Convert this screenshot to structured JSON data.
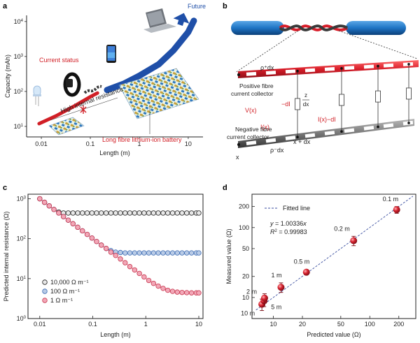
{
  "panels": {
    "a": {
      "label": "a",
      "future_label": "Future",
      "current_status_label": "Current status",
      "high_resistance_label": "High internal resistance",
      "battery_label": "Long fibre lithium-ion battery",
      "colors": {
        "current": "#d11f26",
        "future": "#1f4fa8"
      }
    },
    "b": {
      "label": "b",
      "rho_plus": "ρ⁺dx",
      "pos_collector": [
        "Positive fibre",
        "current collector"
      ],
      "neg_collector": [
        "Negative fibre",
        "current collector"
      ],
      "V": "V(x)",
      "minus_dI": "−dI",
      "z_num": "z",
      "z_den": "dx",
      "I": "I(x)",
      "I_minus": "I(x)−dI",
      "rho_minus": "ρ⁻dx",
      "x": "x",
      "xdx": "x + dx"
    },
    "c": {
      "label": "c"
    },
    "d": {
      "label": "d"
    }
  },
  "chart_data": [
    {
      "panel": "a",
      "type": "line",
      "xlabel": "Length (m)",
      "ylabel": "Capacity (mAh)",
      "x_scale": "log",
      "y_scale": "log",
      "xlim": [
        0.005,
        20
      ],
      "ylim": [
        5,
        15000
      ],
      "x_ticks": [
        {
          "v": 0.01,
          "t": "0.01"
        },
        {
          "v": 0.1,
          "t": "0.1"
        },
        {
          "v": 1,
          "t": "1"
        },
        {
          "v": 10,
          "t": "10"
        }
      ],
      "y_ticks": [
        {
          "v": 10,
          "t": "10",
          "e": "1"
        },
        {
          "v": 100,
          "t": "10",
          "e": "2"
        },
        {
          "v": 1000,
          "t": "10",
          "e": "3"
        },
        {
          "v": 10000,
          "t": "10",
          "e": "4"
        }
      ],
      "series": [
        {
          "x": [
            0.009,
            0.02,
            0.05,
            0.1,
            0.14
          ],
          "y": [
            12,
            20,
            40,
            70,
            90
          ]
        },
        {
          "x": [
            0.22,
            0.5,
            1.0,
            2.5,
            5.0,
            10.0,
            13.0
          ],
          "y": [
            110,
            170,
            280,
            600,
            1500,
            5000,
            10500
          ]
        }
      ]
    },
    {
      "panel": "c",
      "type": "scatter",
      "xlabel": "Length (m)",
      "ylabel": "Predicted internal resistance (Ω)",
      "x_scale": "log",
      "y_scale": "log",
      "xlim": [
        0.006,
        12
      ],
      "ylim": [
        1,
        1300
      ],
      "x_ticks": [
        {
          "v": 0.01,
          "t": "0.01"
        },
        {
          "v": 0.1,
          "t": "0.1"
        },
        {
          "v": 1,
          "t": "1"
        },
        {
          "v": 10,
          "t": "10"
        }
      ],
      "y_ticks": [
        {
          "v": 1,
          "t": "10",
          "e": "0"
        },
        {
          "v": 10,
          "t": "10",
          "e": "1"
        },
        {
          "v": 100,
          "t": "10",
          "e": "2"
        },
        {
          "v": 1000,
          "t": "10",
          "e": "3"
        }
      ],
      "x": [
        0.01,
        0.0123,
        0.0151,
        0.0185,
        0.0228,
        0.028,
        0.0344,
        0.0423,
        0.052,
        0.0638,
        0.0785,
        0.0965,
        0.118,
        0.145,
        0.179,
        0.22,
        0.27,
        0.332,
        0.408,
        0.501,
        0.616,
        0.757,
        0.93,
        1.14,
        1.4,
        1.72,
        2.12,
        2.6,
        3.2,
        3.93,
        4.83,
        5.93,
        7.29,
        8.96,
        10.0
      ],
      "series": [
        {
          "name": "10,000 Ω m⁻¹",
          "color": "#222222",
          "fill": "#e8e8e8",
          "values": [
            1000,
            815,
            663,
            540,
            465,
            440,
            440,
            440,
            440,
            440,
            440,
            440,
            440,
            440,
            440,
            440,
            440,
            440,
            440,
            440,
            440,
            440,
            440,
            440,
            440,
            440,
            440,
            440,
            440,
            440,
            440,
            440,
            440,
            440,
            440
          ]
        },
        {
          "name": "100 Ω m⁻¹",
          "color": "#3b6bb3",
          "fill": "#b9cbe6",
          "values": [
            1000,
            815,
            663,
            540,
            440,
            357,
            291,
            237,
            193,
            157,
            128,
            104,
            85,
            69,
            57,
            50,
            46,
            45,
            44,
            44,
            44,
            44,
            44,
            44,
            44,
            44,
            44,
            44,
            44,
            44,
            44,
            44,
            44,
            44,
            44
          ]
        },
        {
          "name": "1 Ω m⁻¹",
          "color": "#c8374f",
          "fill": "#f2a8b8",
          "values": [
            1000,
            815,
            663,
            540,
            440,
            357,
            291,
            237,
            193,
            157,
            128,
            104,
            85,
            69,
            57,
            46,
            38,
            31,
            25,
            20,
            16.5,
            13.5,
            11,
            9,
            7.6,
            6.5,
            5.7,
            5.1,
            4.8,
            4.6,
            4.5,
            4.45,
            4.4,
            4.4,
            4.4
          ]
        }
      ],
      "legend_position": "bottom-left"
    },
    {
      "panel": "d",
      "type": "scatter",
      "xlabel": "Predicted value (Ω)",
      "ylabel": "Measured value (Ω)",
      "x_scale": "log",
      "y_scale": "log",
      "xlim": [
        6,
        300
      ],
      "ylim": [
        5,
        300
      ],
      "x_ticks": [
        {
          "v": 10,
          "t": "10"
        },
        {
          "v": 20,
          "t": "20"
        },
        {
          "v": 50,
          "t": "50"
        },
        {
          "v": 100,
          "t": "100"
        },
        {
          "v": 200,
          "t": "200"
        }
      ],
      "y_ticks": [
        {
          "v": 10,
          "t": "10"
        },
        {
          "v": 20,
          "t": "20"
        },
        {
          "v": 50,
          "t": "50"
        },
        {
          "v": 100,
          "t": "100"
        },
        {
          "v": 200,
          "t": "200"
        }
      ],
      "fit": {
        "legend": "Fitted line",
        "equation_lhs": "y",
        "equation_rhs": " = 1.00336",
        "equation_var": "x",
        "r2_lhs": "R",
        "r2_rhs": " = 0.99983",
        "slope": 1.00336
      },
      "points": [
        {
          "label": "10 m",
          "x": 7.6,
          "y": 8.0,
          "err": 1.5
        },
        {
          "label": "5 m",
          "x": 8.0,
          "y": 9.0,
          "err": 1.6
        },
        {
          "label": "2 m",
          "x": 8.1,
          "y": 9.8,
          "err": 1.5
        },
        {
          "label": "1 m",
          "x": 12.0,
          "y": 14.0,
          "err": 2.2
        },
        {
          "label": "0.5 m",
          "x": 22.0,
          "y": 23.0,
          "err": 1.5
        },
        {
          "label": "0.2 m",
          "x": 68.0,
          "y": 65.0,
          "err": 10
        },
        {
          "label": "0.1 m",
          "x": 190.0,
          "y": 180.0,
          "err": 20
        }
      ],
      "color": "#c41e2f"
    }
  ]
}
